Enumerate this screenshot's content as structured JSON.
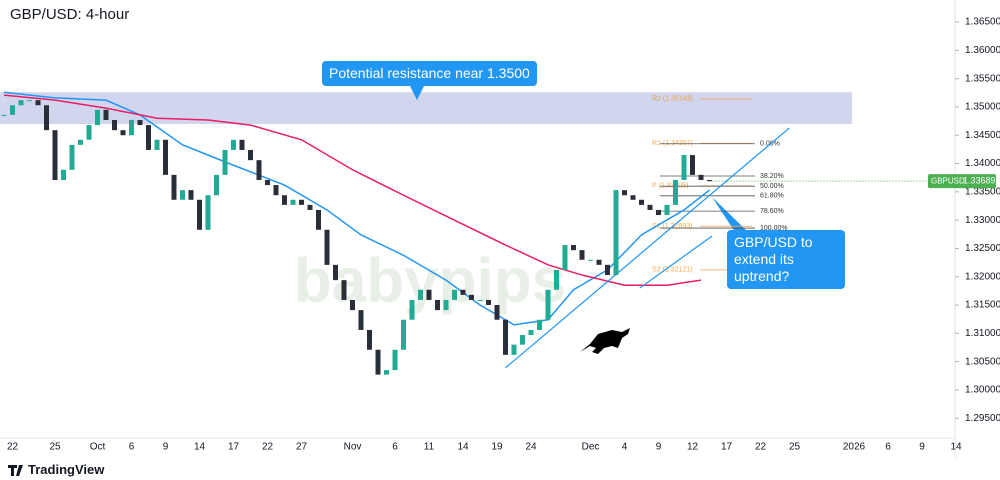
{
  "chart_data": {
    "type": "candlestick",
    "title": "GBP/USD: 4-hour",
    "categories": [
      null,
      "22",
      null,
      null,
      null,
      null,
      "25",
      null,
      null,
      null,
      null,
      "Oct",
      null,
      null,
      null,
      "6",
      null,
      null,
      null,
      "9",
      null,
      null,
      null,
      "14",
      null,
      null,
      null,
      "17",
      null,
      null,
      null,
      "22",
      null,
      null,
      null,
      "27",
      null,
      null,
      null,
      null,
      null,
      "Nov",
      null,
      null,
      null,
      null,
      "6",
      null,
      null,
      null,
      "11",
      null,
      null,
      null,
      "14",
      null,
      null,
      null,
      "19",
      null,
      null,
      null,
      "24",
      null,
      null,
      null,
      null,
      null,
      null,
      "Dec",
      null,
      null,
      null,
      "4",
      null,
      null,
      null,
      "9",
      null,
      null,
      null,
      "12",
      null,
      null,
      null,
      "17",
      null,
      null,
      null,
      "22",
      null,
      null,
      null,
      "25",
      null,
      null,
      null,
      null,
      null,
      null,
      "2026",
      null,
      null,
      null,
      "6",
      null,
      null,
      null,
      "9",
      null,
      null,
      null,
      "14"
    ],
    "values": [
      1.3486,
      1.3503,
      1.3512,
      1.3512,
      1.3503,
      1.3459,
      1.3371,
      1.3389,
      1.3433,
      1.3442,
      1.3468,
      1.3495,
      1.3477,
      1.3459,
      1.345,
      1.3477,
      1.3468,
      1.3424,
      1.3442,
      1.338,
      1.3336,
      1.3353,
      1.3336,
      1.3283,
      1.3344,
      1.338,
      1.3424,
      1.3442,
      1.3424,
      1.3406,
      1.3371,
      1.3362,
      1.3344,
      1.3327,
      1.3336,
      1.3327,
      1.3318,
      1.3283,
      1.3221,
      1.3194,
      1.3159,
      1.3141,
      1.3106,
      1.3071,
      1.3027,
      1.3035,
      1.3071,
      1.3124,
      1.3159,
      1.3177,
      1.3159,
      1.3141,
      1.3159,
      1.3177,
      1.3168,
      1.3159,
      1.3159,
      1.315,
      1.3124,
      1.3062,
      1.308,
      1.3097,
      1.3106,
      1.3124,
      1.3177,
      1.3212,
      1.3256,
      1.3247,
      1.323,
      1.323,
      1.3221,
      1.3203,
      1.3353,
      1.3344,
      1.3336,
      1.3327,
      1.3318,
      1.3309,
      1.3327,
      1.3371,
      1.3415,
      1.338,
      1.3371,
      1.33689,
      null,
      null,
      null,
      null,
      null,
      null,
      null,
      null,
      null,
      null,
      null,
      null,
      null,
      null,
      null,
      null,
      null,
      null,
      null,
      null,
      null,
      null,
      null,
      null,
      null,
      null,
      null,
      null,
      null
    ],
    "up_color": "#22ab94",
    "down_color": "#2a2e39",
    "ylim": [
      1.2885,
      1.3689
    ],
    "yticks": [
      {
        "value": 1.295,
        "label": "1.29500"
      },
      {
        "value": 1.3,
        "label": "1.30000"
      },
      {
        "value": 1.305,
        "label": "1.30500"
      },
      {
        "value": 1.31,
        "label": "1.31000"
      },
      {
        "value": 1.315,
        "label": "1.31500"
      },
      {
        "value": 1.32,
        "label": "1.32000"
      },
      {
        "value": 1.325,
        "label": "1.32500"
      },
      {
        "value": 1.33,
        "label": "1.33000"
      },
      {
        "value": 1.335,
        "label": "1.33500"
      },
      {
        "value": 1.34,
        "label": "1.34000"
      },
      {
        "value": 1.345,
        "label": "1.34500"
      },
      {
        "value": 1.35,
        "label": "1.35000"
      },
      {
        "value": 1.355,
        "label": "1.35500"
      },
      {
        "value": 1.36,
        "label": "1.36000"
      },
      {
        "value": 1.365,
        "label": "1.36500"
      }
    ],
    "grid": false,
    "moving_averages": [
      {
        "color": "#2196f3",
        "x": [
          0,
          6,
          12,
          16,
          21,
          27,
          33,
          38,
          42,
          47,
          52,
          56,
          60,
          64,
          67,
          71,
          75,
          80,
          83
        ],
        "values": [
          1.3526,
          1.3516,
          1.3512,
          1.3486,
          1.3433,
          1.3397,
          1.3362,
          1.3318,
          1.3274,
          1.3238,
          1.3194,
          1.315,
          1.3115,
          1.3124,
          1.3177,
          1.3212,
          1.3274,
          1.3318,
          1.3353
        ]
      },
      {
        "color": "#e91e63",
        "x": [
          0,
          6,
          12,
          18,
          24,
          29,
          35,
          41,
          47,
          53,
          59,
          64,
          68,
          73,
          78,
          82
        ],
        "values": [
          1.3521,
          1.3512,
          1.3498,
          1.348,
          1.3477,
          1.3468,
          1.3442,
          1.3389,
          1.3344,
          1.33,
          1.3256,
          1.3221,
          1.3203,
          1.3185,
          1.3185,
          1.3194
        ]
      }
    ],
    "trendlines": [
      {
        "color": "#2196f3",
        "x": [
          59,
          92.4
        ],
        "values": [
          1.3039,
          1.3463
        ]
      },
      {
        "color": "#2196f3",
        "x": [
          74.8,
          83.3
        ],
        "values": [
          1.318,
          1.3272
        ]
      }
    ],
    "resistance_zone": {
      "values": [
        1.347,
        1.3526
      ],
      "color": "#c5cae9"
    },
    "fib_levels": [
      {
        "label": "0.00%",
        "value": 1.3435
      },
      {
        "label": "38.20%",
        "value": 1.3378
      },
      {
        "label": "50.00%",
        "value": 1.336
      },
      {
        "label": "61.80%",
        "value": 1.3343
      },
      {
        "label": "78.60%",
        "value": 1.3316
      },
      {
        "label": "100.00%",
        "value": 1.3286
      }
    ],
    "pivots": [
      {
        "label": "R2 (1.35143)",
        "value": 1.35143
      },
      {
        "label": "R1 (1.34357)",
        "value": 1.34357
      },
      {
        "label": "P (1.33605)",
        "value": 1.33605
      },
      {
        "label": "S1 (1.32893)",
        "value": 1.32893
      },
      {
        "label": "S2 (1.32121)",
        "value": 1.32121
      }
    ],
    "last_price": {
      "label": "GBPUSD",
      "value": 1.33689,
      "color": "#4caf50"
    },
    "annotations": [
      "Potential resistance near 1.3500",
      "GBP/USD to extend its uptrend?"
    ],
    "watermark": "babypips",
    "footer": "TradingView"
  }
}
